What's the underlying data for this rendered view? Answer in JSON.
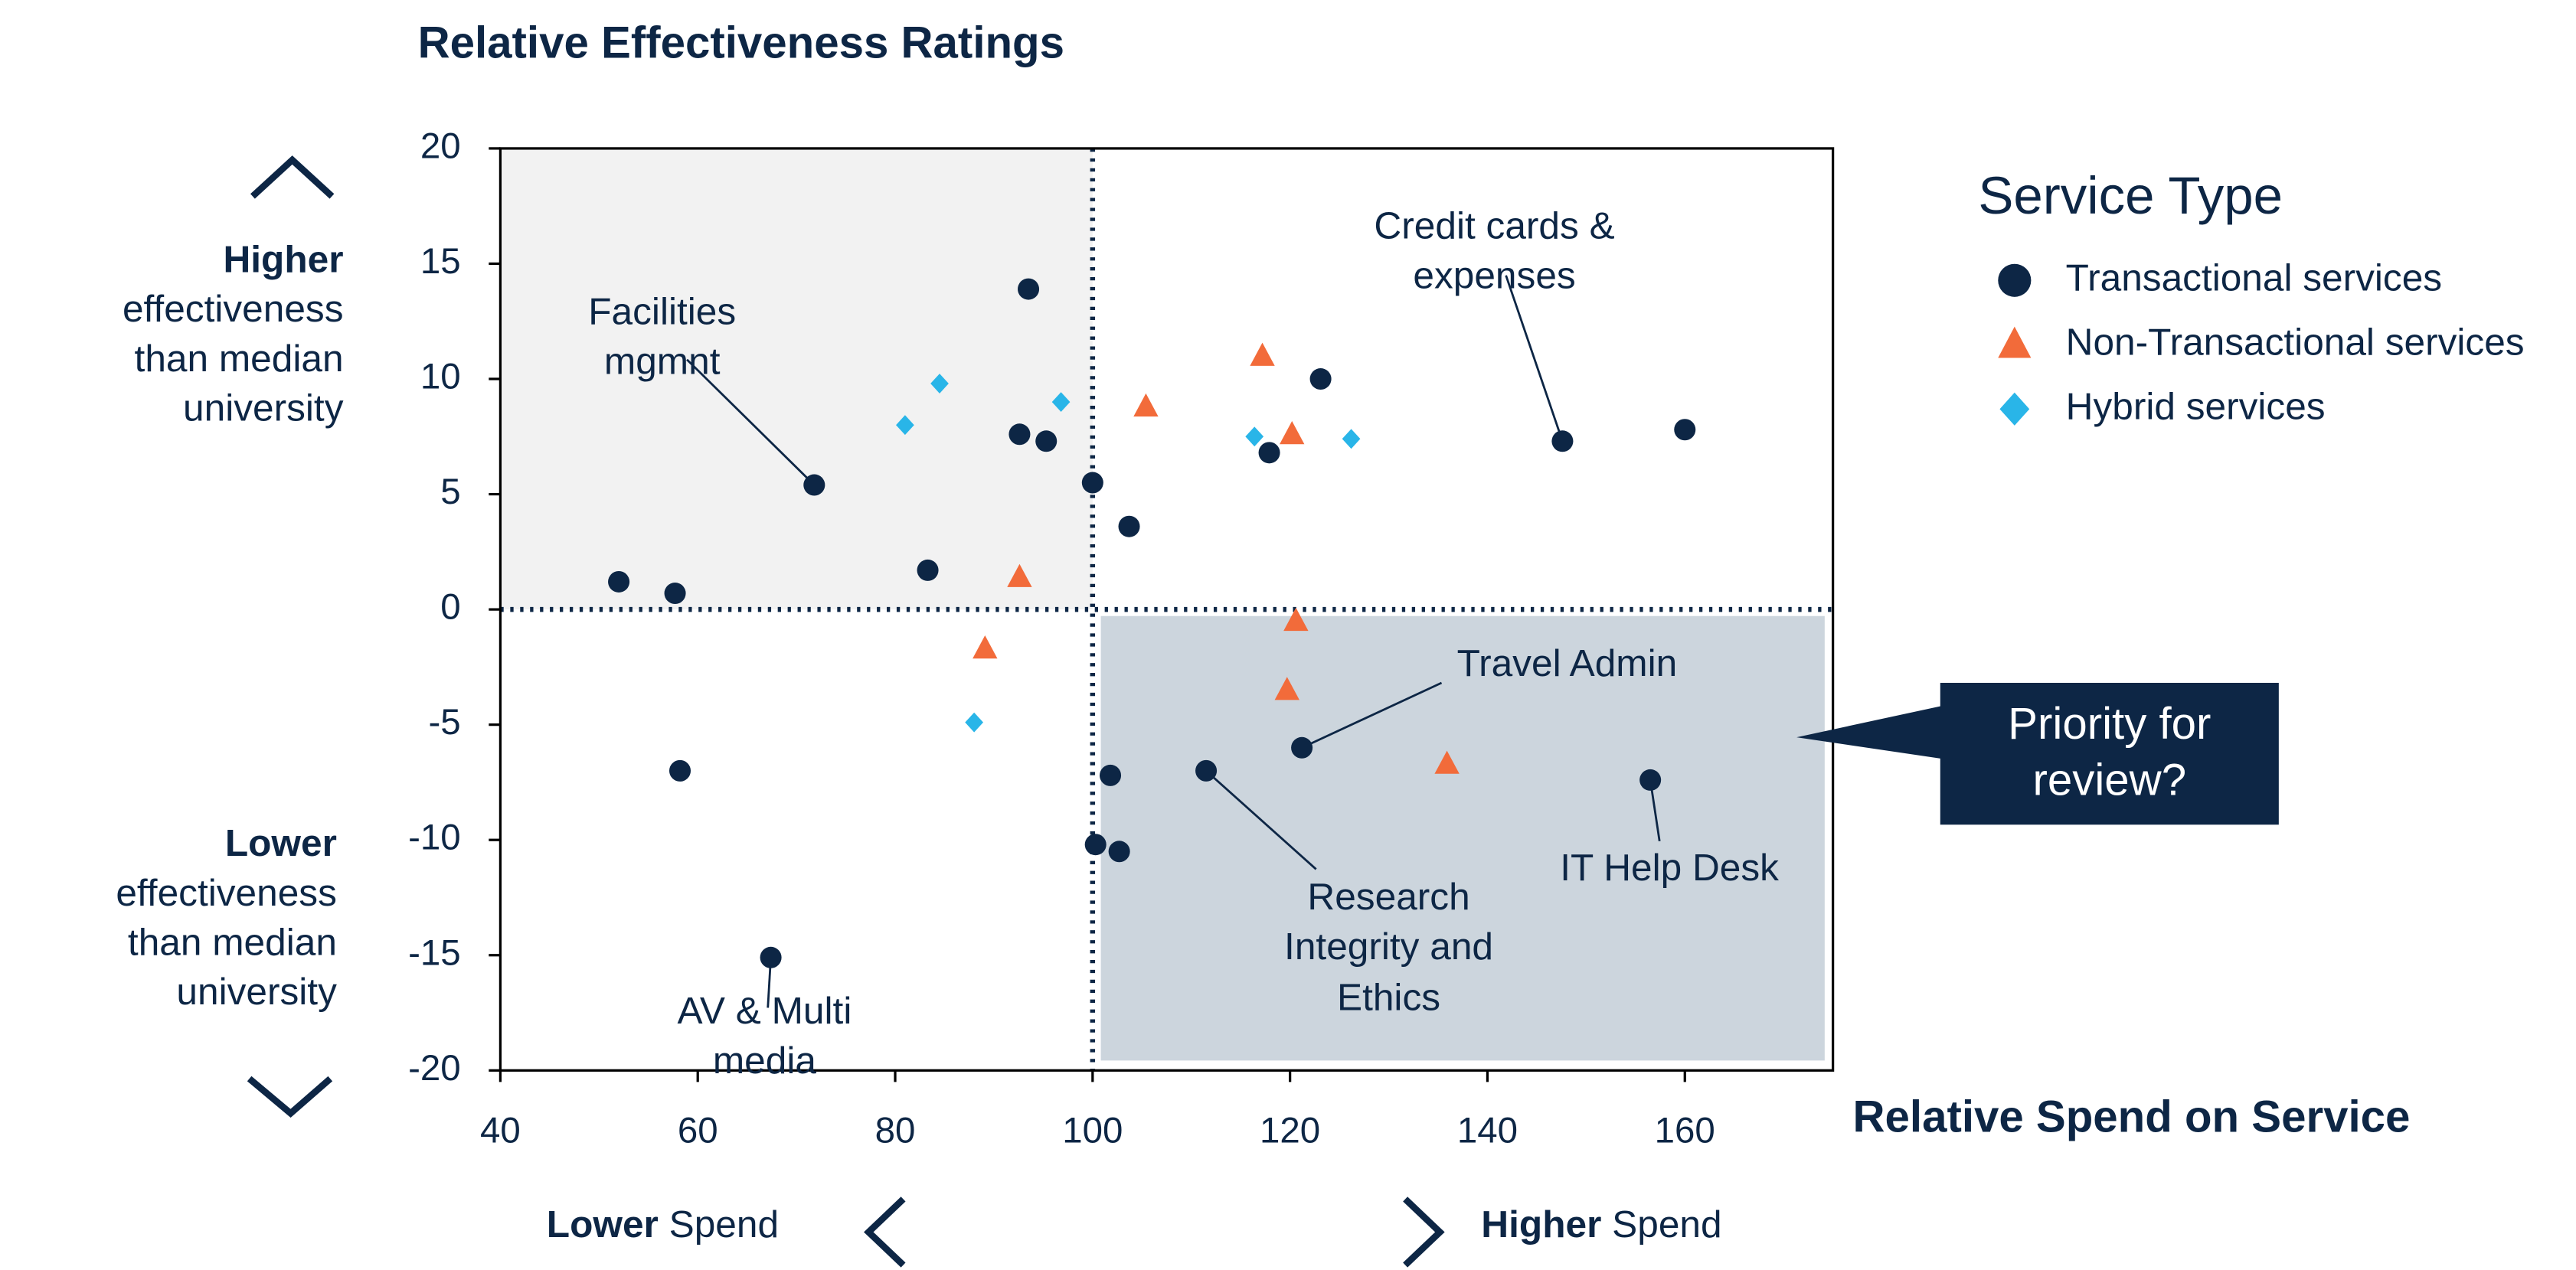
{
  "chart_data": {
    "type": "scatter",
    "title": "Relative Effectiveness Ratings",
    "x_label": "Relative Spend on Service",
    "x_low_label": {
      "bold": "Lower",
      "text": "Spend"
    },
    "x_high_label": {
      "bold": "Higher",
      "text": "Spend"
    },
    "y_high_label": {
      "bold": "Higher",
      "text": "effectiveness than median university"
    },
    "y_low_label": {
      "bold": "Lower",
      "text": "effectiveness than median university"
    },
    "xlim": [
      40,
      175
    ],
    "ylim": [
      -20,
      20
    ],
    "xticks": [
      40,
      60,
      80,
      100,
      120,
      140,
      160
    ],
    "yticks": [
      -20,
      -15,
      -10,
      -5,
      0,
      5,
      10,
      15,
      20
    ],
    "x_reference": 100,
    "y_reference": 0,
    "legend_title": "Service Type",
    "series": [
      {
        "name": "Transactional services",
        "color": "#0d2645",
        "marker": "circle",
        "x": [
          52.0,
          57.7,
          93.5,
          71.8,
          92.6,
          95.3,
          100.0,
          103.7,
          83.3,
          117.9,
          123.1,
          147.6,
          160.0,
          58.2,
          67.4,
          101.8,
          100.3,
          102.7,
          111.5,
          121.2,
          156.5
        ],
        "values": [
          1.2,
          0.7,
          13.9,
          5.4,
          7.6,
          7.3,
          5.5,
          3.6,
          1.7,
          6.8,
          10.0,
          7.3,
          7.8,
          -7.0,
          -15.1,
          -7.2,
          -10.2,
          -10.5,
          -7.0,
          -6.0,
          -7.4
        ]
      },
      {
        "name": "Non-Transactional services",
        "color": "#f26b3a",
        "marker": "triangle",
        "x": [
          117.2,
          105.4,
          120.2,
          92.6,
          89.1,
          120.6,
          119.7,
          135.9
        ],
        "values": [
          11.0,
          8.8,
          7.6,
          1.4,
          -1.7,
          -0.5,
          -3.5,
          -6.7
        ]
      },
      {
        "name": "Hybrid services",
        "color": "#29b5e8",
        "marker": "diamond",
        "x": [
          81.0,
          84.5,
          96.8,
          116.4,
          126.2,
          88.0
        ],
        "values": [
          8.0,
          9.8,
          9.0,
          7.5,
          7.4,
          -4.9
        ]
      }
    ],
    "annotations": [
      "Facilities mgmnt",
      "Credit cards & expenses",
      "Travel Admin",
      "Research Integrity and Ethics",
      "IT Help Desk",
      "AV & Multi media"
    ],
    "callout": "Priority for review?"
  }
}
